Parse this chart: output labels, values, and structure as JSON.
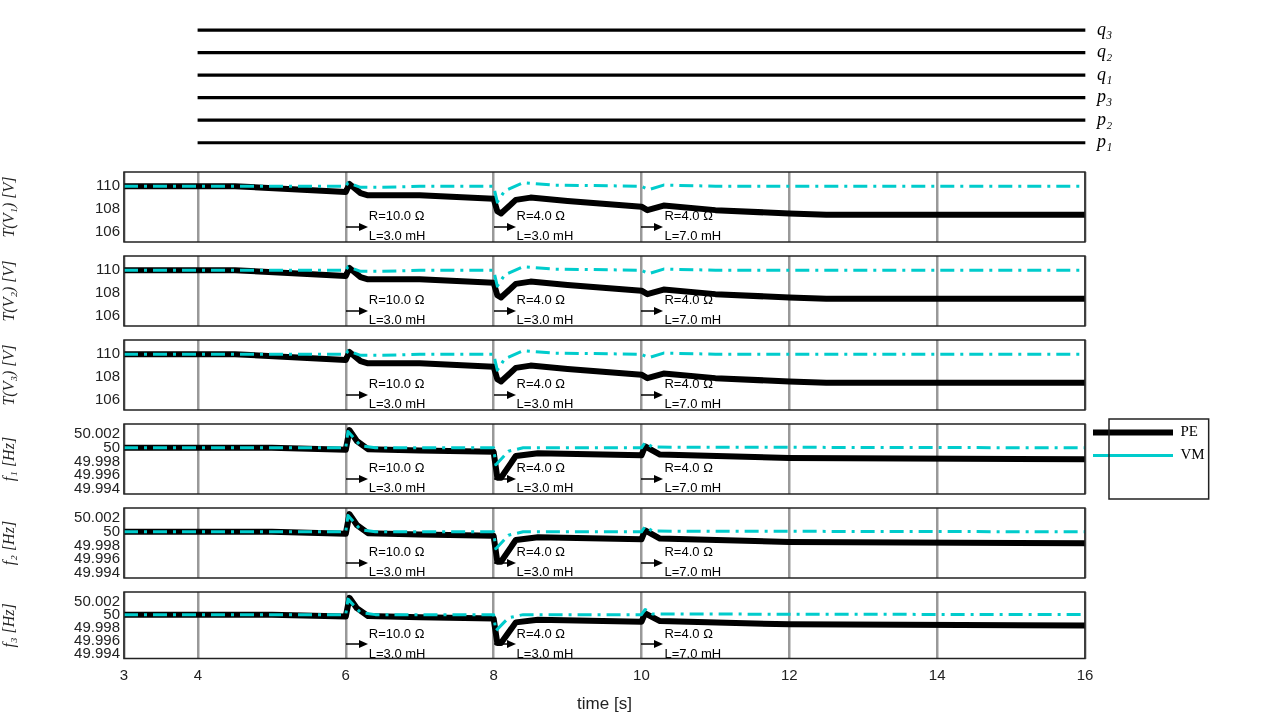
{
  "chart_data": [
    {
      "type": "bar",
      "orientation": "horizontal",
      "categories": [
        "q₃",
        "q₂",
        "q₁",
        "p₃",
        "p₂",
        "p₁"
      ],
      "base": [
        4,
        4,
        4,
        4,
        4,
        4
      ],
      "values": [
        12,
        12,
        12,
        12,
        12,
        12
      ],
      "color": "#000000",
      "xlim": [
        3,
        16
      ],
      "tick_labels": "y"
    },
    {
      "type": "line",
      "ylabel": "T(V₁) [V]",
      "x": [
        3,
        4,
        4.5,
        6,
        6.05,
        6.2,
        6.3,
        7,
        8,
        8.05,
        8.1,
        8.3,
        8.5,
        9,
        10,
        10.08,
        10.3,
        11,
        12,
        12.5,
        16
      ],
      "series": [
        {
          "color": "#000000",
          "values": [
            110,
            110,
            110,
            109.5,
            110.2,
            109.4,
            109.2,
            109.2,
            108.9,
            107.8,
            107.6,
            108.8,
            109,
            108.7,
            108.2,
            107.9,
            108.3,
            107.9,
            107.6,
            107.5,
            107.5
          ]
        },
        {
          "color": "#00cccc",
          "line_style": "dashed",
          "x": [
            3,
            6,
            6.03,
            6.2,
            6.5,
            7,
            8,
            8.05,
            8.15,
            8.4,
            8.8,
            10,
            10.1,
            10.3,
            11,
            16
          ],
          "values": [
            110,
            110,
            110.3,
            109.9,
            109.9,
            110,
            110,
            108.6,
            109.6,
            110.3,
            110.1,
            110,
            109.7,
            110.1,
            110,
            110
          ]
        }
      ],
      "xlim": [
        3,
        16
      ],
      "xticks": [
        3,
        4,
        6,
        8,
        10,
        12,
        14,
        16
      ],
      "ylim": [
        105.1,
        111.25
      ],
      "yticks": [
        106,
        108,
        110
      ],
      "grid": "x",
      "tick_labels": "y",
      "annotations": [
        "R=10.0 Ω\nL=3.0 mH",
        "R=4.0 Ω\nL=3.0 mH",
        "R=4.0 Ω\nL=7.0 mH"
      ]
    },
    {
      "type": "line",
      "ylabel": "T(V₂) [V]",
      "x": [
        3,
        4,
        4.5,
        6,
        6.05,
        6.2,
        6.3,
        7,
        8,
        8.05,
        8.1,
        8.3,
        8.5,
        9,
        10,
        10.08,
        10.3,
        11,
        12,
        12.5,
        16
      ],
      "series": [
        {
          "color": "#000000",
          "values": [
            110,
            110,
            110,
            109.5,
            110.2,
            109.4,
            109.2,
            109.2,
            108.9,
            107.8,
            107.6,
            108.8,
            109,
            108.7,
            108.2,
            107.9,
            108.3,
            107.9,
            107.6,
            107.5,
            107.5
          ]
        },
        {
          "color": "#00cccc",
          "line_style": "dashed",
          "x": [
            3,
            6,
            6.03,
            6.2,
            6.5,
            7,
            8,
            8.05,
            8.15,
            8.4,
            8.8,
            10,
            10.1,
            10.3,
            11,
            16
          ],
          "values": [
            110,
            110,
            110.3,
            109.9,
            109.9,
            110,
            110,
            108.6,
            109.6,
            110.3,
            110.1,
            110,
            109.7,
            110.1,
            110,
            110
          ]
        }
      ],
      "xlim": [
        3,
        16
      ],
      "xticks": [
        3,
        4,
        6,
        8,
        10,
        12,
        14,
        16
      ],
      "ylim": [
        105.1,
        111.25
      ],
      "yticks": [
        106,
        108,
        110
      ],
      "grid": "x",
      "tick_labels": "y",
      "annotations": [
        "R=10.0 Ω\nL=3.0 mH",
        "R=4.0 Ω\nL=3.0 mH",
        "R=4.0 Ω\nL=7.0 mH"
      ]
    },
    {
      "type": "line",
      "ylabel": "T(V₃) [V]",
      "x": [
        3,
        4,
        4.5,
        6,
        6.05,
        6.2,
        6.3,
        7,
        8,
        8.05,
        8.1,
        8.3,
        8.5,
        9,
        10,
        10.08,
        10.3,
        11,
        12,
        12.5,
        16
      ],
      "series": [
        {
          "color": "#000000",
          "values": [
            110,
            110,
            110,
            109.5,
            110.2,
            109.4,
            109.2,
            109.2,
            108.9,
            107.8,
            107.6,
            108.8,
            109,
            108.7,
            108.2,
            107.9,
            108.3,
            107.9,
            107.6,
            107.5,
            107.5
          ]
        },
        {
          "color": "#00cccc",
          "line_style": "dashed",
          "x": [
            3,
            6,
            6.03,
            6.2,
            6.5,
            7,
            8,
            8.05,
            8.15,
            8.4,
            8.8,
            10,
            10.1,
            10.3,
            11,
            16
          ],
          "values": [
            110,
            110,
            110.3,
            109.9,
            109.9,
            110,
            110,
            108.6,
            109.6,
            110.3,
            110.1,
            110,
            109.7,
            110.1,
            110,
            110
          ]
        }
      ],
      "xlim": [
        3,
        16
      ],
      "xticks": [
        3,
        4,
        6,
        8,
        10,
        12,
        14,
        16
      ],
      "ylim": [
        105.1,
        111.25
      ],
      "yticks": [
        106,
        108,
        110
      ],
      "grid": "x",
      "tick_labels": "y",
      "annotations": [
        "R=10.0 Ω\nL=3.0 mH",
        "R=4.0 Ω\nL=3.0 mH",
        "R=4.0 Ω\nL=7.0 mH"
      ]
    },
    {
      "type": "line",
      "ylabel": "f₁ [Hz]",
      "legend": "right",
      "x": [
        3,
        5,
        6,
        6.05,
        6.15,
        6.3,
        7,
        8,
        8.05,
        8.1,
        8.3,
        8.6,
        10,
        10.05,
        10.25,
        12,
        16
      ],
      "series": [
        {
          "name": "PE",
          "color": "#000000",
          "values": [
            50,
            50,
            49.9997,
            50.0026,
            50.001,
            49.9998,
            49.9996,
            49.9994,
            49.9956,
            49.9956,
            49.9988,
            49.9992,
            49.9989,
            50.0002,
            49.999,
            49.9985,
            49.9983
          ]
        },
        {
          "name": "VM",
          "color": "#00cccc",
          "line_style": "dashed",
          "x": [
            3,
            6,
            6.03,
            6.2,
            6.4,
            8,
            8.03,
            8.2,
            8.4,
            10,
            10.05,
            10.15,
            16
          ],
          "values": [
            50,
            50,
            50.0024,
            50.0003,
            50,
            50,
            49.9975,
            49.9995,
            50,
            50,
            50.0008,
            50.0001,
            50
          ]
        }
      ],
      "xlim": [
        3,
        16
      ],
      "xticks": [
        3,
        4,
        6,
        8,
        10,
        12,
        14,
        16
      ],
      "ylim": [
        49.9932,
        50.0035
      ],
      "yticks": [
        49.994,
        49.996,
        49.998,
        50,
        50.002
      ],
      "grid": "x",
      "tick_labels": "y",
      "annotations": [
        "R=10.0 Ω\nL=3.0 mH",
        "R=4.0 Ω\nL=3.0 mH",
        "R=4.0 Ω\nL=7.0 mH"
      ]
    },
    {
      "type": "line",
      "ylabel": "f₂ [Hz]",
      "x": [
        3,
        5,
        6,
        6.05,
        6.15,
        6.3,
        7,
        8,
        8.05,
        8.1,
        8.3,
        8.6,
        10,
        10.05,
        10.25,
        12,
        16
      ],
      "series": [
        {
          "color": "#000000",
          "values": [
            50,
            50,
            49.9997,
            50.0026,
            50.001,
            49.9998,
            49.9996,
            49.9994,
            49.9956,
            49.9956,
            49.9988,
            49.9992,
            49.9989,
            50.0002,
            49.999,
            49.9985,
            49.9983
          ]
        },
        {
          "color": "#00cccc",
          "line_style": "dashed",
          "x": [
            3,
            6,
            6.03,
            6.2,
            6.4,
            8,
            8.03,
            8.2,
            8.4,
            10,
            10.05,
            10.15,
            16
          ],
          "values": [
            50,
            50,
            50.0024,
            50.0003,
            50,
            50,
            49.9975,
            49.9995,
            50,
            50,
            50.0008,
            50.0001,
            50
          ]
        }
      ],
      "xlim": [
        3,
        16
      ],
      "xticks": [
        3,
        4,
        6,
        8,
        10,
        12,
        14,
        16
      ],
      "ylim": [
        49.9932,
        50.0035
      ],
      "yticks": [
        49.994,
        49.996,
        49.998,
        50,
        50.002
      ],
      "grid": "x",
      "tick_labels": "y",
      "annotations": [
        "R=10.0 Ω\nL=3.0 mH",
        "R=4.0 Ω\nL=3.0 mH",
        "R=4.0 Ω\nL=7.0 mH"
      ]
    },
    {
      "type": "line",
      "ylabel": "f₃ [Hz]",
      "xlabel": "time [s]",
      "x": [
        3,
        5,
        6,
        6.05,
        6.15,
        6.3,
        7,
        8,
        8.05,
        8.1,
        8.3,
        8.6,
        10,
        10.05,
        10.25,
        12,
        16
      ],
      "series": [
        {
          "color": "#000000",
          "values": [
            50,
            50,
            49.9997,
            50.0026,
            50.001,
            49.9998,
            49.9996,
            49.9994,
            49.9956,
            49.9956,
            49.9988,
            49.9992,
            49.9989,
            50.0002,
            49.999,
            49.9985,
            49.9983
          ]
        },
        {
          "color": "#00cccc",
          "line_style": "dashed",
          "x": [
            3,
            6,
            6.03,
            6.2,
            6.4,
            8,
            8.03,
            8.2,
            8.4,
            10,
            10.05,
            10.15,
            16
          ],
          "values": [
            50,
            50,
            50.0024,
            50.0003,
            50,
            50,
            49.9975,
            49.9995,
            50,
            50,
            50.0008,
            50.0001,
            50
          ]
        }
      ],
      "xlim": [
        3,
        16
      ],
      "xticks": [
        3,
        4,
        6,
        8,
        10,
        12,
        14,
        16
      ],
      "ylim": [
        49.9932,
        50.0035
      ],
      "yticks": [
        49.994,
        49.996,
        49.998,
        50,
        50.002
      ],
      "grid": "x",
      "annotations": [
        "R=10.0 Ω\nL=3.0 mH",
        "R=4.0 Ω\nL=3.0 mH",
        "R=4.0 Ω\nL=7.0 mH"
      ]
    }
  ]
}
